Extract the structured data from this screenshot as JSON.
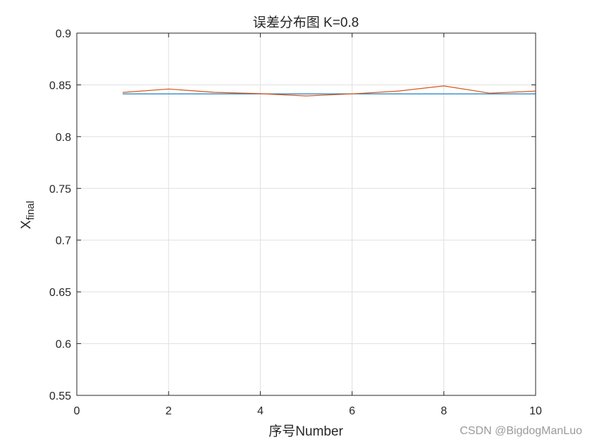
{
  "chart_data": {
    "type": "line",
    "title": "误差分布图 K=0.8",
    "xlabel": "序号Number",
    "ylabel": {
      "base": "X",
      "subscript": "final"
    },
    "xlim": [
      0,
      10
    ],
    "ylim": [
      0.55,
      0.9
    ],
    "xticks": [
      0,
      2,
      4,
      6,
      8,
      10
    ],
    "xtick_labels": [
      "0",
      "2",
      "4",
      "6",
      "8",
      "10"
    ],
    "yticks": [
      0.55,
      0.6,
      0.65,
      0.7,
      0.75,
      0.8,
      0.85,
      0.9
    ],
    "ytick_labels": [
      "0.55",
      "0.6",
      "0.65",
      "0.7",
      "0.75",
      "0.8",
      "0.85",
      "0.9"
    ],
    "grid": true,
    "x": [
      1,
      2,
      3,
      4,
      5,
      6,
      7,
      8,
      9,
      10
    ],
    "series": [
      {
        "color": "#0072BD",
        "values": [
          0.8413,
          0.8413,
          0.8413,
          0.8413,
          0.8413,
          0.8413,
          0.8413,
          0.8413,
          0.8413,
          0.8413
        ]
      },
      {
        "color": "#D95319",
        "values": [
          0.8427,
          0.846,
          0.8428,
          0.8415,
          0.8393,
          0.8413,
          0.844,
          0.849,
          0.842,
          0.844
        ]
      }
    ]
  },
  "watermark": "CSDN @BigdogManLuo"
}
